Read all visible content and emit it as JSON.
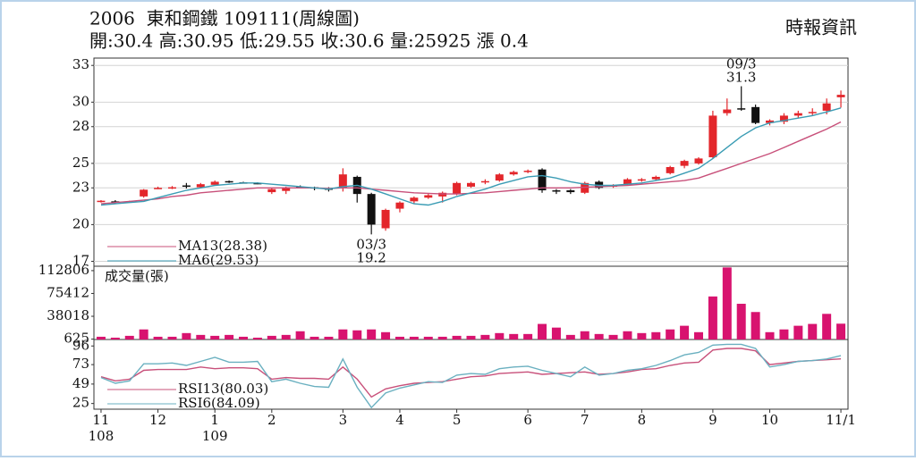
{
  "chart_data": [
    {
      "type": "candlestick",
      "title": "2006  東和鋼鐵 109111(周線圖)",
      "subtitle": "開:30.4 高:30.95 低:29.55 收:30.6 量:25925 漲 0.4",
      "source": "時報資訊",
      "categories": [
        "11",
        null,
        null,
        null,
        "12",
        null,
        null,
        null,
        "1",
        null,
        null,
        null,
        "2",
        null,
        null,
        null,
        null,
        "3",
        null,
        null,
        null,
        "4",
        null,
        null,
        null,
        "5",
        null,
        null,
        null,
        null,
        "6",
        null,
        null,
        null,
        "7",
        null,
        null,
        null,
        "8",
        null,
        null,
        null,
        null,
        "9",
        null,
        null,
        null,
        "10",
        null,
        null,
        null,
        null,
        "11/1"
      ],
      "year_labels": [
        "108",
        null,
        null,
        null,
        null,
        null,
        null,
        null,
        "109",
        null,
        null,
        null,
        null,
        null,
        null,
        null,
        null,
        null,
        null,
        null,
        null,
        null,
        null,
        null,
        null,
        null,
        null,
        null,
        null,
        null,
        null,
        null,
        null,
        null,
        null,
        null,
        null,
        null,
        null,
        null,
        null,
        null,
        null,
        null,
        null,
        null,
        null,
        null,
        null,
        null,
        null,
        null,
        null
      ],
      "open": [
        21.9,
        21.9,
        21.85,
        22.3,
        22.95,
        23.0,
        23.2,
        23.05,
        23.25,
        23.55,
        23.45,
        23.4,
        22.65,
        22.75,
        23.1,
        23.05,
        22.95,
        22.95,
        23.9,
        22.5,
        19.7,
        21.3,
        21.9,
        22.2,
        22.3,
        22.5,
        23.1,
        23.5,
        23.6,
        24.1,
        24.3,
        24.5,
        22.8,
        22.8,
        22.6,
        23.5,
        23.1,
        23.3,
        23.6,
        23.7,
        24.2,
        24.8,
        25.0,
        25.5,
        29.1,
        29.5,
        29.6,
        28.3,
        28.4,
        28.9,
        29.1,
        29.3,
        30.4
      ],
      "high": [
        22.0,
        22.0,
        21.95,
        22.9,
        23.1,
        23.15,
        23.4,
        23.4,
        23.6,
        23.6,
        23.5,
        23.45,
        22.95,
        23.1,
        23.2,
        23.1,
        23.05,
        24.6,
        24.0,
        22.6,
        21.3,
        21.9,
        22.3,
        22.5,
        22.7,
        23.5,
        23.5,
        23.7,
        24.2,
        24.4,
        24.5,
        24.6,
        22.9,
        22.9,
        23.5,
        23.6,
        23.3,
        23.8,
        23.8,
        24.0,
        24.8,
        25.3,
        25.5,
        29.3,
        30.3,
        31.3,
        29.8,
        28.6,
        29.1,
        29.3,
        29.5,
        30.3,
        30.95
      ],
      "low": [
        21.8,
        21.7,
        21.8,
        22.2,
        22.9,
        22.9,
        22.95,
        23.0,
        23.2,
        23.4,
        23.35,
        23.3,
        22.5,
        22.5,
        22.95,
        22.8,
        22.7,
        22.7,
        21.8,
        19.2,
        19.5,
        21.0,
        21.7,
        22.1,
        21.8,
        22.4,
        23.0,
        23.3,
        23.5,
        24.0,
        24.2,
        22.6,
        22.5,
        22.5,
        22.5,
        22.9,
        23.0,
        23.2,
        23.5,
        23.6,
        24.1,
        24.6,
        24.9,
        25.4,
        28.9,
        29.3,
        28.2,
        28.1,
        28.2,
        28.7,
        28.9,
        29.0,
        29.55
      ],
      "close": [
        21.95,
        21.8,
        21.9,
        22.85,
        23.0,
        23.05,
        23.1,
        23.3,
        23.5,
        23.45,
        23.4,
        23.35,
        22.9,
        23.05,
        23.0,
        22.95,
        22.85,
        24.1,
        22.5,
        20.0,
        21.2,
        21.8,
        22.2,
        22.4,
        22.6,
        23.4,
        23.4,
        23.55,
        24.1,
        24.3,
        24.4,
        22.8,
        22.7,
        22.65,
        23.4,
        23.0,
        23.2,
        23.7,
        23.7,
        23.9,
        24.7,
        25.2,
        25.4,
        28.9,
        29.4,
        29.4,
        28.3,
        28.5,
        28.9,
        29.1,
        29.2,
        29.9,
        30.6
      ],
      "up_color": "#e3262b",
      "down_color": "#111111",
      "series": [
        {
          "name": "MA13(28.38)",
          "color": "#c8507a",
          "values": [
            21.7,
            21.8,
            21.9,
            22.0,
            22.1,
            22.3,
            22.4,
            22.6,
            22.7,
            22.8,
            22.9,
            23.0,
            23.0,
            23.0,
            23.0,
            23.0,
            22.95,
            23.0,
            23.0,
            22.9,
            22.8,
            22.7,
            22.6,
            22.55,
            22.5,
            22.5,
            22.55,
            22.6,
            22.7,
            22.8,
            22.9,
            23.0,
            23.0,
            23.0,
            23.05,
            23.1,
            23.15,
            23.2,
            23.3,
            23.4,
            23.5,
            23.6,
            23.8,
            24.2,
            24.6,
            25.0,
            25.4,
            25.8,
            26.3,
            26.8,
            27.3,
            27.8,
            28.38
          ]
        },
        {
          "name": "MA6(29.53)",
          "color": "#3a9cb4",
          "values": [
            21.6,
            21.7,
            21.8,
            21.9,
            22.2,
            22.5,
            22.8,
            23.0,
            23.2,
            23.3,
            23.4,
            23.4,
            23.3,
            23.2,
            23.1,
            23.0,
            22.9,
            23.1,
            23.2,
            22.9,
            22.5,
            22.1,
            21.7,
            21.6,
            21.9,
            22.3,
            22.6,
            22.9,
            23.3,
            23.6,
            23.9,
            24.0,
            23.8,
            23.5,
            23.3,
            23.2,
            23.2,
            23.3,
            23.4,
            23.6,
            23.8,
            24.2,
            24.6,
            25.4,
            26.3,
            27.2,
            27.9,
            28.3,
            28.5,
            28.7,
            28.9,
            29.2,
            29.53
          ]
        }
      ],
      "high_label": {
        "date": "09/3",
        "value": 31.3
      },
      "low_label": {
        "date": "03/3",
        "value": 19.2
      },
      "ylim": [
        16.6,
        33.6
      ],
      "yticks": [
        17,
        20,
        23,
        25,
        28,
        30,
        33
      ],
      "grid": true
    },
    {
      "type": "bar",
      "title": "成交量(張)",
      "color": "#d8136f",
      "values": [
        4500,
        3000,
        6000,
        16500,
        4500,
        4500,
        10500,
        7500,
        6000,
        7500,
        4500,
        3000,
        6000,
        7500,
        13500,
        4500,
        4500,
        16500,
        15000,
        16500,
        12000,
        4500,
        4500,
        4500,
        4500,
        6000,
        6000,
        7500,
        10500,
        9000,
        9000,
        25500,
        19500,
        7500,
        13500,
        9000,
        7500,
        13500,
        10500,
        12000,
        16500,
        22500,
        12000,
        70500,
        118000,
        58500,
        45000,
        12000,
        16500,
        22500,
        25500,
        42000,
        25925
      ],
      "ylim": [
        0,
        120000
      ],
      "yticks": [
        625,
        38018,
        75412,
        112806
      ],
      "grid": false
    },
    {
      "type": "line",
      "series": [
        {
          "name": "RSI13(80.03)",
          "color": "#c8507a",
          "values": [
            58,
            53,
            55,
            66,
            67,
            67,
            67,
            70,
            68,
            69,
            69,
            68,
            55,
            57,
            56,
            56,
            55,
            70,
            55,
            33,
            43,
            47,
            50,
            51,
            52,
            55,
            58,
            59,
            62,
            63,
            64,
            61,
            62,
            63,
            64,
            61,
            62,
            64,
            67,
            68,
            72,
            75,
            76,
            91,
            93,
            93,
            90,
            73,
            75,
            77,
            78,
            79,
            80.03
          ]
        },
        {
          "name": "RSI6(84.09)",
          "color": "#6ab0c0",
          "values": [
            57,
            50,
            53,
            74,
            74,
            75,
            72,
            77,
            82,
            76,
            76,
            77,
            52,
            55,
            50,
            46,
            45,
            80,
            45,
            20,
            38,
            44,
            48,
            52,
            51,
            60,
            62,
            61,
            68,
            70,
            71,
            66,
            62,
            58,
            70,
            60,
            62,
            66,
            68,
            72,
            78,
            85,
            88,
            97,
            98,
            98,
            93,
            70,
            73,
            77,
            78,
            80,
            84.09
          ]
        }
      ],
      "ylim": [
        18,
        104
      ],
      "yticks": [
        25,
        49,
        73,
        96
      ],
      "grid": false
    }
  ]
}
